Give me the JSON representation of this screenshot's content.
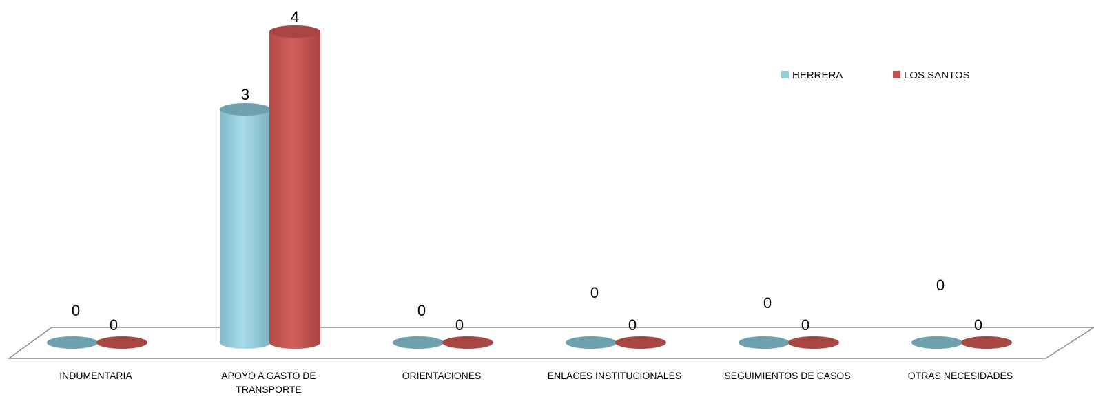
{
  "chart_data": {
    "type": "bar",
    "style": "3d-cylinder",
    "categories": [
      [
        "INDUMENTARIA"
      ],
      [
        "APOYO A GASTO DE",
        "TRANSPORTE"
      ],
      [
        "ORIENTACIONES"
      ],
      [
        "ENLACES INSTITUCIONALES"
      ],
      [
        "SEGUIMIENTOS DE CASOS"
      ],
      [
        "OTRAS NECESIDADES"
      ]
    ],
    "series": [
      {
        "name": "HERRERA",
        "values": [
          0,
          3,
          0,
          0,
          0,
          0
        ],
        "color": "#93CDDD"
      },
      {
        "name": "LOS SANTOS",
        "values": [
          0,
          4,
          0,
          0,
          0,
          0
        ],
        "color": "#C0504D"
      }
    ],
    "ylim": [
      0,
      4
    ],
    "legend": "top-right",
    "grid": false
  }
}
